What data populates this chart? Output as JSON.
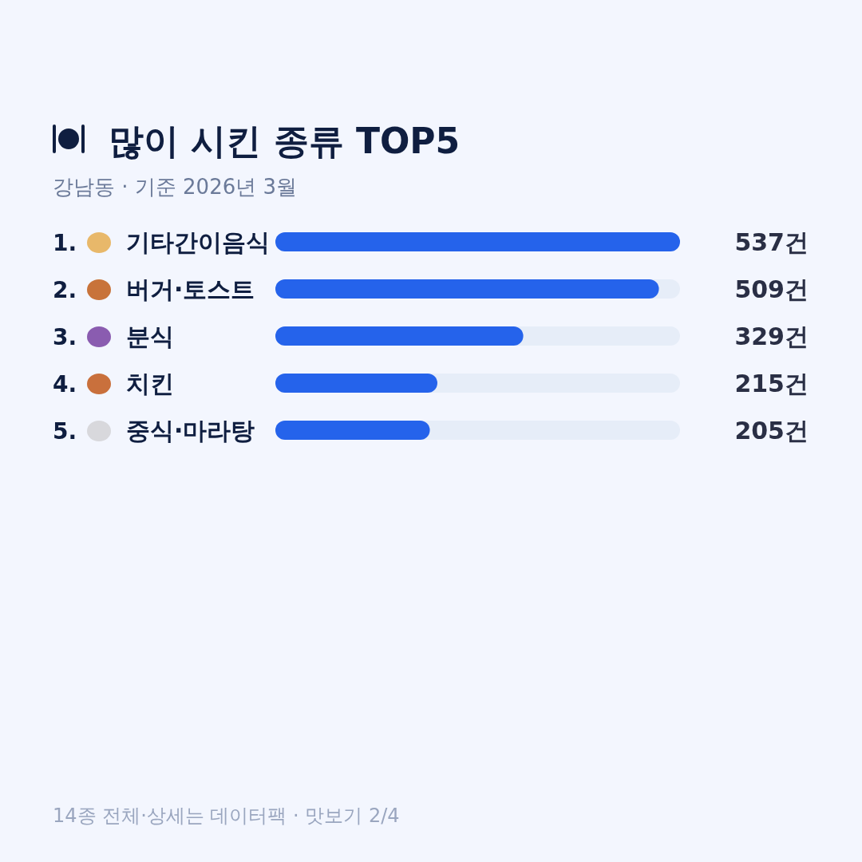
{
  "chart_data": {
    "type": "bar",
    "orientation": "horizontal",
    "title": "많이 시킨 종류 TOP5",
    "subtitle": "강남동 · 기준 2026년 3월",
    "categories": [
      "기타간이음식",
      "버거·토스트",
      "분식",
      "치킨",
      "중식·마라탕"
    ],
    "values": [
      537,
      509,
      329,
      215,
      205
    ],
    "value_labels": [
      "537건",
      "509건",
      "329건",
      "215건",
      "205건"
    ],
    "color": "#2563eb",
    "annotations": [
      "1.",
      "2.",
      "3.",
      "4.",
      "5.",
      "14종 전체·상세는 데이터팩 · 맛보기 2/4"
    ]
  }
}
